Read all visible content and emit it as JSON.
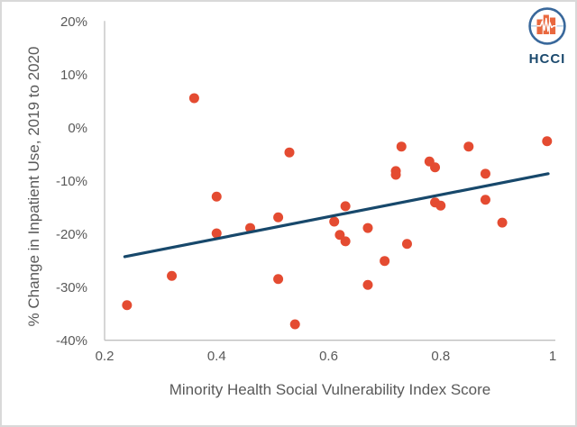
{
  "chart_data": {
    "type": "scatter",
    "title": "",
    "xlabel": "Minority Health Social Vulnerability Index Score",
    "ylabel": "% Change in Inpatient Use, 2019 to 2020",
    "xlim": [
      0.2,
      1.0
    ],
    "ylim": [
      -40,
      20
    ],
    "grid": false,
    "legend": null,
    "x_ticks": [
      0.2,
      0.4,
      0.6,
      0.8,
      1.0
    ],
    "x_tick_labels": [
      "0.2",
      "0.4",
      "0.6",
      "0.8",
      "1"
    ],
    "y_ticks": [
      20,
      10,
      0,
      -10,
      -20,
      -30,
      -40
    ],
    "y_tick_labels": [
      "20%",
      "10%",
      "0%",
      "-10%",
      "-20%",
      "-30%",
      "-40%"
    ],
    "marker_color": "#E44B31",
    "trendline_color": "#17486B",
    "points": [
      [
        0.24,
        -33.4
      ],
      [
        0.32,
        -27.9
      ],
      [
        0.36,
        5.5
      ],
      [
        0.4,
        -13.0
      ],
      [
        0.4,
        -19.9
      ],
      [
        0.46,
        -18.9
      ],
      [
        0.51,
        -16.9
      ],
      [
        0.51,
        -28.5
      ],
      [
        0.53,
        -4.7
      ],
      [
        0.54,
        -37.0
      ],
      [
        0.61,
        -17.7
      ],
      [
        0.62,
        -20.2
      ],
      [
        0.63,
        -14.8
      ],
      [
        0.63,
        -21.4
      ],
      [
        0.67,
        -18.9
      ],
      [
        0.67,
        -29.6
      ],
      [
        0.7,
        -25.1
      ],
      [
        0.72,
        -8.2
      ],
      [
        0.72,
        -8.9
      ],
      [
        0.73,
        -3.6
      ],
      [
        0.74,
        -21.9
      ],
      [
        0.78,
        -6.4
      ],
      [
        0.79,
        -7.5
      ],
      [
        0.79,
        -14.1
      ],
      [
        0.8,
        -14.7
      ],
      [
        0.85,
        -3.6
      ],
      [
        0.88,
        -8.7
      ],
      [
        0.88,
        -13.6
      ],
      [
        0.91,
        -17.9
      ],
      [
        0.99,
        -2.6
      ]
    ],
    "trendline": {
      "x1": 0.236,
      "y1": -24.3,
      "x2": 0.992,
      "y2": -8.7
    }
  },
  "logo": {
    "text": "HCCI",
    "ring_color": "#39689B",
    "bar_color": "#E9683F",
    "pulse_color": "#FFFFFF",
    "crossline_color": "#BFD6EA",
    "text_color": "#1C4A6E"
  },
  "colors": {
    "background": "#FFFFFF",
    "border": "#D9D9D9",
    "axis_line": "#BFBFBF",
    "text": "#595959"
  }
}
